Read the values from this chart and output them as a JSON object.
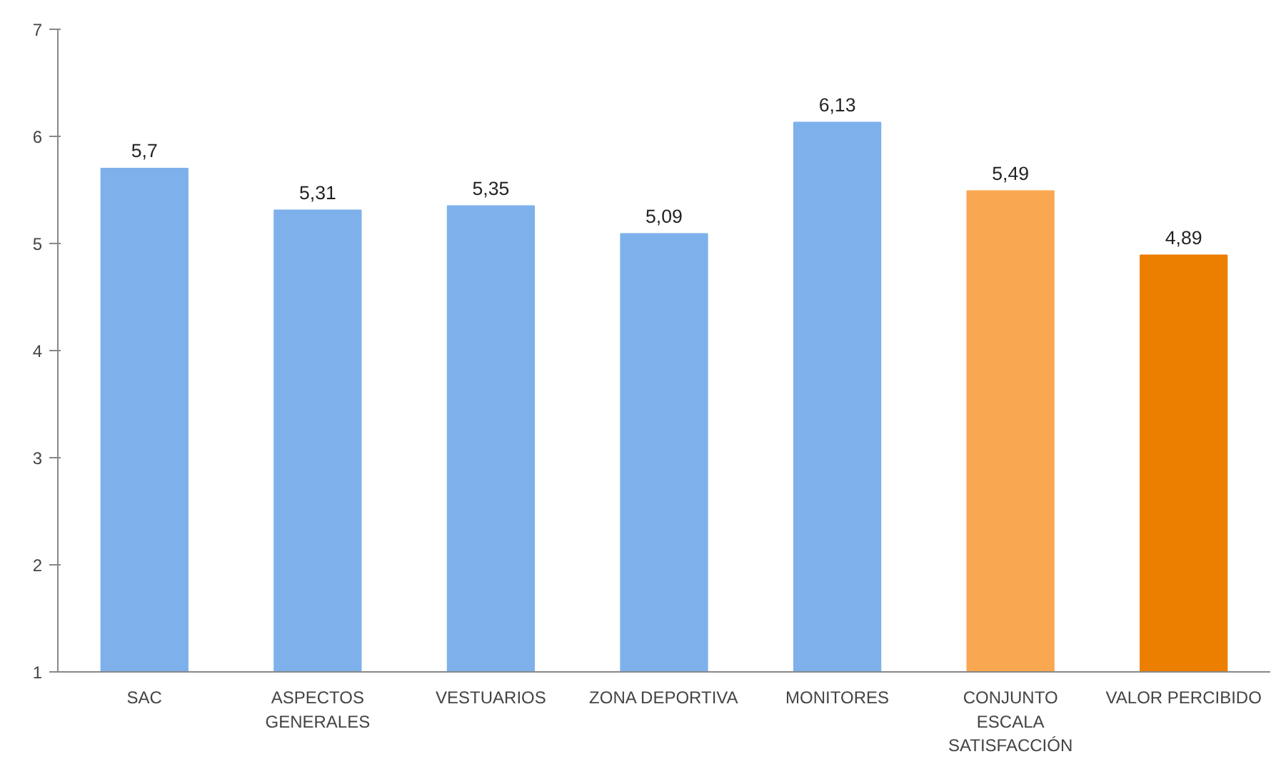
{
  "chart_data": {
    "type": "bar",
    "categories": [
      "SAC",
      "ASPECTOS\nGENERALES",
      "VESTUARIOS",
      "ZONA DEPORTIVA",
      "MONITORES",
      "CONJUNTO\nESCALA\nSATISFACCIÓN",
      "VALOR PERCIBIDO"
    ],
    "values": [
      5.7,
      5.31,
      5.35,
      5.09,
      6.13,
      5.49,
      4.89
    ],
    "colors": [
      "#7eb1ec",
      "#7eb1ec",
      "#7eb1ec",
      "#7eb1ec",
      "#7eb1ec",
      "#f9a851",
      "#ec7f00"
    ],
    "ylim": [
      1,
      7
    ],
    "yticks": [
      1,
      2,
      3,
      4,
      5,
      6,
      7
    ],
    "value_labels": [
      "5,7",
      "5,31",
      "5,35",
      "5,09",
      "6,13",
      "5,49",
      "4,89"
    ],
    "grid": false
  }
}
